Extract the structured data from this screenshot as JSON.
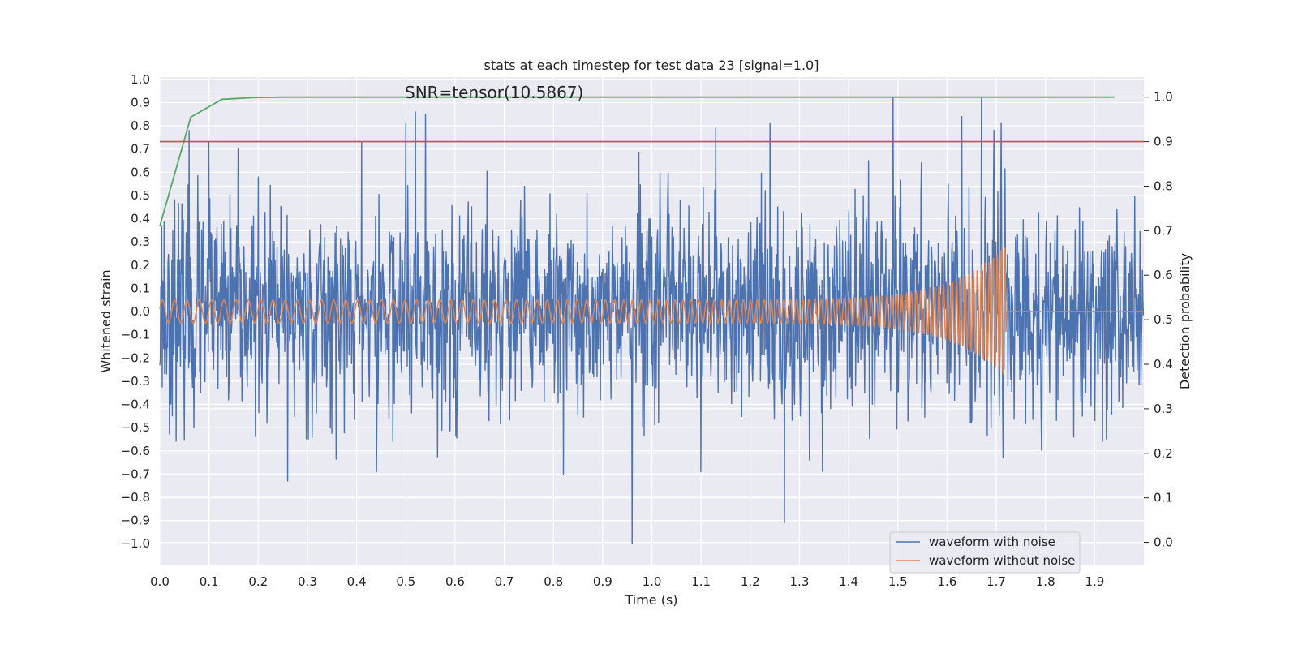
{
  "chart_data": {
    "type": "line",
    "title": "stats at each timestep for test data 23 [signal=1.0]",
    "annotation": "SNR=tensor(10.5867)",
    "xlabel": "Time (s)",
    "ylabel": "Whitened strain",
    "ylabel_right": "Detection probability",
    "xlim": [
      0.0,
      2.0
    ],
    "ylim": [
      -1.09,
      1.01
    ],
    "ylim_right": [
      -0.05,
      1.045
    ],
    "x_ticks": [
      0.0,
      0.1,
      0.2,
      0.3,
      0.4,
      0.5,
      0.6,
      0.7,
      0.8,
      0.9,
      1.0,
      1.1,
      1.2,
      1.3,
      1.4,
      1.5,
      1.6,
      1.7,
      1.8,
      1.9
    ],
    "x_tick_labels": [
      "0.0",
      "0.1",
      "0.2",
      "0.3",
      "0.4",
      "0.5",
      "0.6",
      "0.7",
      "0.8",
      "0.9",
      "1.0",
      "1.1",
      "1.2",
      "1.3",
      "1.4",
      "1.5",
      "1.6",
      "1.7",
      "1.8",
      "1.9"
    ],
    "y_ticks": [
      1.0,
      0.9,
      0.8,
      0.7,
      0.6,
      0.5,
      0.4,
      0.3,
      0.2,
      0.1,
      0.0,
      -0.1,
      -0.2,
      -0.3,
      -0.4,
      -0.5,
      -0.6,
      -0.7,
      -0.8,
      -0.9,
      -1.0
    ],
    "y_tick_labels": [
      "1.0",
      "0.9",
      "0.8",
      "0.7",
      "0.6",
      "0.5",
      "0.4",
      "0.3",
      "0.2",
      "0.1",
      "0.0",
      "−0.1",
      "−0.2",
      "−0.3",
      "−0.4",
      "−0.5",
      "−0.6",
      "−0.7",
      "−0.8",
      "−0.9",
      "−1.0"
    ],
    "y_ticks_right": [
      1.0,
      0.9,
      0.8,
      0.7,
      0.6,
      0.5,
      0.4,
      0.3,
      0.2,
      0.1,
      0.0
    ],
    "y_tick_labels_right": [
      "1.0",
      "0.9",
      "0.8",
      "0.7",
      "0.6",
      "0.5",
      "0.4",
      "0.3",
      "0.2",
      "0.1",
      "0.0"
    ],
    "grid": true,
    "legend_position": "bottom-right",
    "colors": {
      "background": "#eaeaf2",
      "grid": "#ffffff",
      "noisy": "#4c72b0",
      "clean": "#dd8452",
      "probability": "#55a868",
      "threshold": "#c44e52"
    },
    "series": [
      {
        "name": "waveform with noise",
        "axis": "left",
        "noise_std": 0.22,
        "visible_extremes": [
          {
            "x": 0.06,
            "y": 0.78
          },
          {
            "x": 0.1,
            "y": 0.73
          },
          {
            "x": 0.41,
            "y": 0.73
          },
          {
            "x": 0.52,
            "y": 0.86
          },
          {
            "x": 0.54,
            "y": 0.85
          },
          {
            "x": 0.5,
            "y": 0.81
          },
          {
            "x": 1.13,
            "y": 0.79
          },
          {
            "x": 1.24,
            "y": 0.81
          },
          {
            "x": 1.49,
            "y": 0.92
          },
          {
            "x": 1.63,
            "y": 0.84
          },
          {
            "x": 1.67,
            "y": 0.92
          },
          {
            "x": 1.71,
            "y": 0.81
          },
          {
            "x": 0.26,
            "y": -0.73
          },
          {
            "x": 0.96,
            "y": -1.0
          },
          {
            "x": 1.27,
            "y": -0.91
          },
          {
            "x": 0.82,
            "y": -0.7
          },
          {
            "x": 0.44,
            "y": -0.69
          },
          {
            "x": 1.1,
            "y": -0.69
          }
        ]
      },
      {
        "name": "waveform without noise",
        "axis": "left",
        "start_frequency_hz": 40,
        "end_frequency_hz": 130,
        "start_amplitude": 0.05,
        "peak_amplitude": 0.29,
        "merger_time": 1.72
      },
      {
        "axis": "right",
        "x": [
          0.0,
          0.063,
          0.126,
          0.189,
          0.25,
          0.315,
          1.94
        ],
        "values": [
          0.71,
          0.955,
          0.995,
          0.999,
          1.0,
          1.0,
          1.0
        ]
      },
      {
        "axis": "right",
        "x": [
          0.0,
          2.0
        ],
        "values": [
          0.9,
          0.9
        ]
      }
    ]
  }
}
